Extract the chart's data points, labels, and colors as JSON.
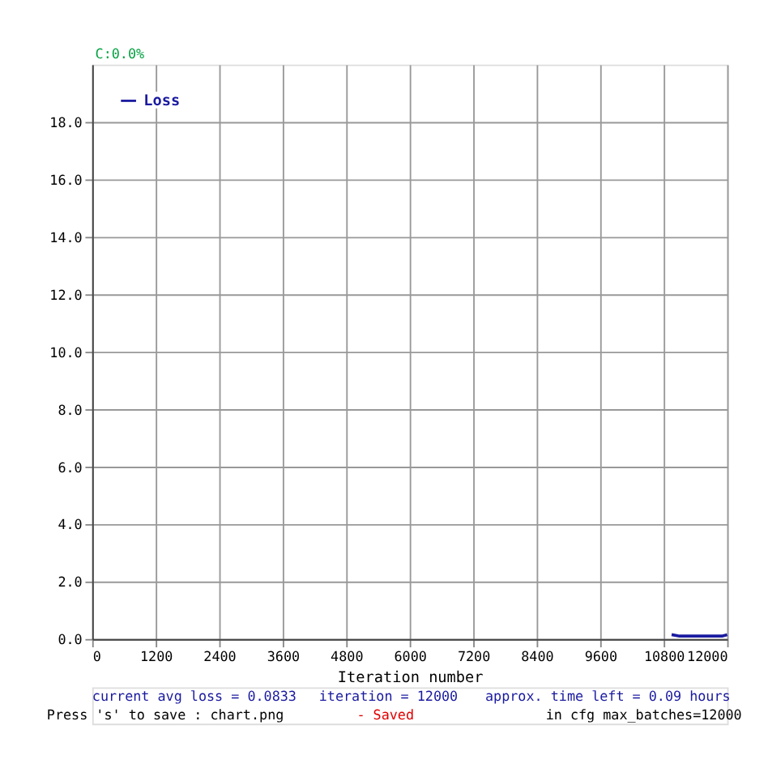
{
  "chart_data": {
    "type": "line",
    "x": [
      10950,
      11100,
      11300,
      11500,
      11700,
      11900,
      12000
    ],
    "series": [
      {
        "name": "Loss",
        "color": "#1a1aa0",
        "values": [
          0.15,
          0.1,
          0.1,
          0.1,
          0.1,
          0.1,
          0.15
        ]
      }
    ],
    "xlabel": "Iteration number",
    "xlim": [
      0,
      12000
    ],
    "xticks": [
      0,
      1200,
      2400,
      3600,
      4800,
      6000,
      7200,
      8400,
      9600,
      10800,
      12000
    ],
    "ylim": [
      0,
      20
    ],
    "yticks": [
      {
        "value": 0,
        "label": "0.0"
      },
      {
        "value": 2,
        "label": "2.0"
      },
      {
        "value": 4,
        "label": "4.0"
      },
      {
        "value": 6,
        "label": "6.0"
      },
      {
        "value": 8,
        "label": "8.0"
      },
      {
        "value": 10,
        "label": "10.0"
      },
      {
        "value": 12,
        "label": "12.0"
      },
      {
        "value": 14,
        "label": "14.0"
      },
      {
        "value": 16,
        "label": "16.0"
      },
      {
        "value": 18,
        "label": "18.0"
      }
    ],
    "grid": true,
    "legend": "top left",
    "marker": "none",
    "line_style": "solid",
    "annotations": [
      "C:0.0%",
      "current avg loss = 0.0833",
      "iteration = 12000",
      "approx. time left = 0.09 hours",
      "Press 's' to save : chart.png",
      "- Saved",
      "in cfg max_batches=12000"
    ]
  }
}
